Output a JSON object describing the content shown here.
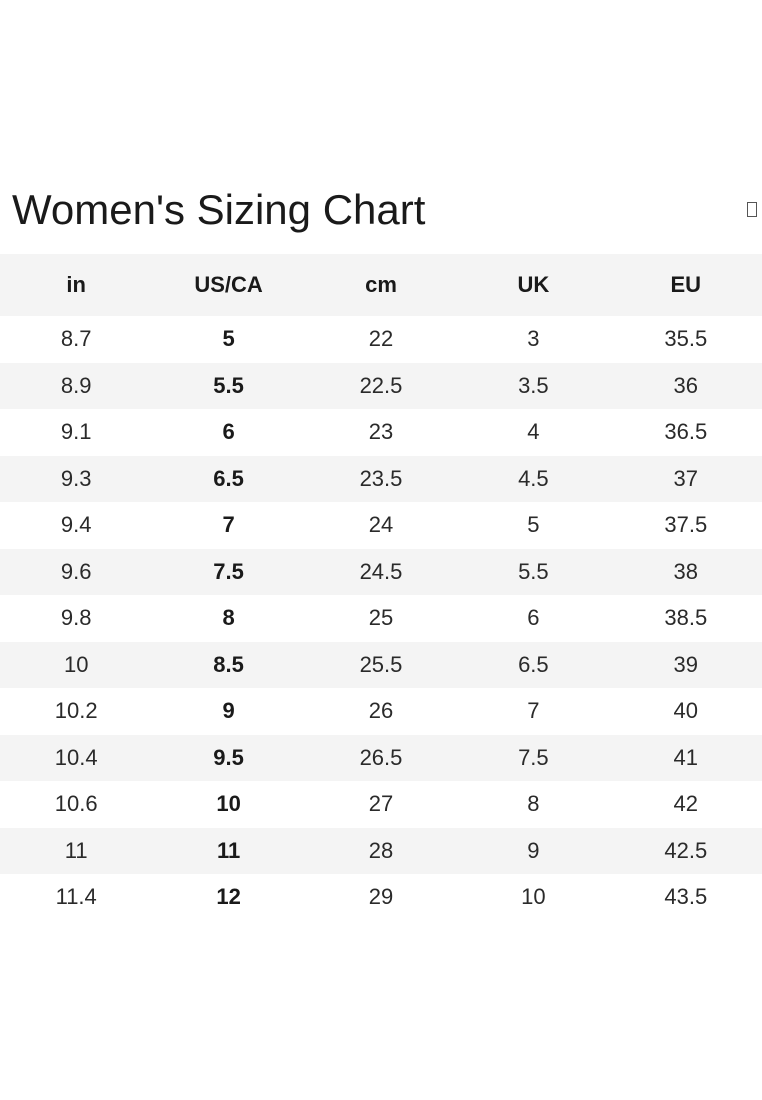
{
  "title": "Women's Sizing Chart",
  "close_icon": "close-icon",
  "columns": [
    "in",
    "US/CA",
    "cm",
    "UK",
    "EU"
  ],
  "rows": [
    [
      "8.7",
      "5",
      "22",
      "3",
      "35.5"
    ],
    [
      "8.9",
      "5.5",
      "22.5",
      "3.5",
      "36"
    ],
    [
      "9.1",
      "6",
      "23",
      "4",
      "36.5"
    ],
    [
      "9.3",
      "6.5",
      "23.5",
      "4.5",
      "37"
    ],
    [
      "9.4",
      "7",
      "24",
      "5",
      "37.5"
    ],
    [
      "9.6",
      "7.5",
      "24.5",
      "5.5",
      "38"
    ],
    [
      "9.8",
      "8",
      "25",
      "6",
      "38.5"
    ],
    [
      "10",
      "8.5",
      "25.5",
      "6.5",
      "39"
    ],
    [
      "10.2",
      "9",
      "26",
      "7",
      "40"
    ],
    [
      "10.4",
      "9.5",
      "26.5",
      "7.5",
      "41"
    ],
    [
      "10.6",
      "10",
      "27",
      "8",
      "42"
    ],
    [
      "11",
      "11",
      "28",
      "9",
      "42.5"
    ],
    [
      "11.4",
      "12",
      "29",
      "10",
      "43.5"
    ]
  ]
}
